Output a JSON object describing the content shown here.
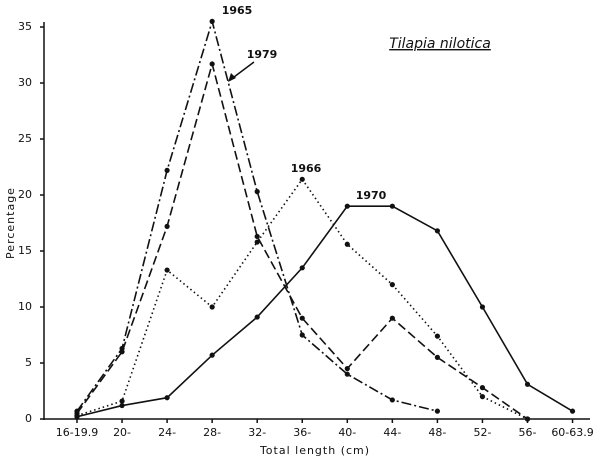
{
  "chart_data": {
    "type": "line",
    "title": "Tilapia nilotica",
    "x_label": "Total length (cm)",
    "y_label": "Percentage",
    "categories": [
      "16-19.9",
      "20-",
      "24-",
      "28-",
      "32-",
      "36-",
      "40-",
      "44-",
      "48-",
      "52-",
      "56-",
      "60-63.9"
    ],
    "ylim": [
      0,
      35
    ],
    "yticks": [
      0,
      5,
      10,
      15,
      20,
      25,
      30,
      35
    ],
    "series": [
      {
        "name": "1965",
        "color": "#111111",
        "style": "dashdot",
        "values": [
          0.7,
          6.3,
          22.2,
          35.5,
          20.3,
          7.5,
          4.0,
          1.7,
          0.7,
          null,
          null,
          null
        ]
      },
      {
        "name": "1979",
        "color": "#111111",
        "style": "dashed",
        "values": [
          0.5,
          6.0,
          17.2,
          31.7,
          16.3,
          9.0,
          4.5,
          9.0,
          5.5,
          2.8,
          0,
          null
        ]
      },
      {
        "name": "1966",
        "color": "#111111",
        "style": "dotted",
        "values": [
          0.3,
          1.6,
          13.3,
          10.0,
          15.8,
          21.4,
          15.6,
          12.0,
          7.4,
          2.0,
          0,
          null
        ]
      },
      {
        "name": "1970",
        "color": "#111111",
        "style": "solid",
        "values": [
          0.2,
          1.2,
          1.9,
          5.7,
          9.1,
          13.5,
          19.0,
          19.0,
          16.8,
          10.0,
          3.1,
          0.7
        ]
      }
    ]
  }
}
